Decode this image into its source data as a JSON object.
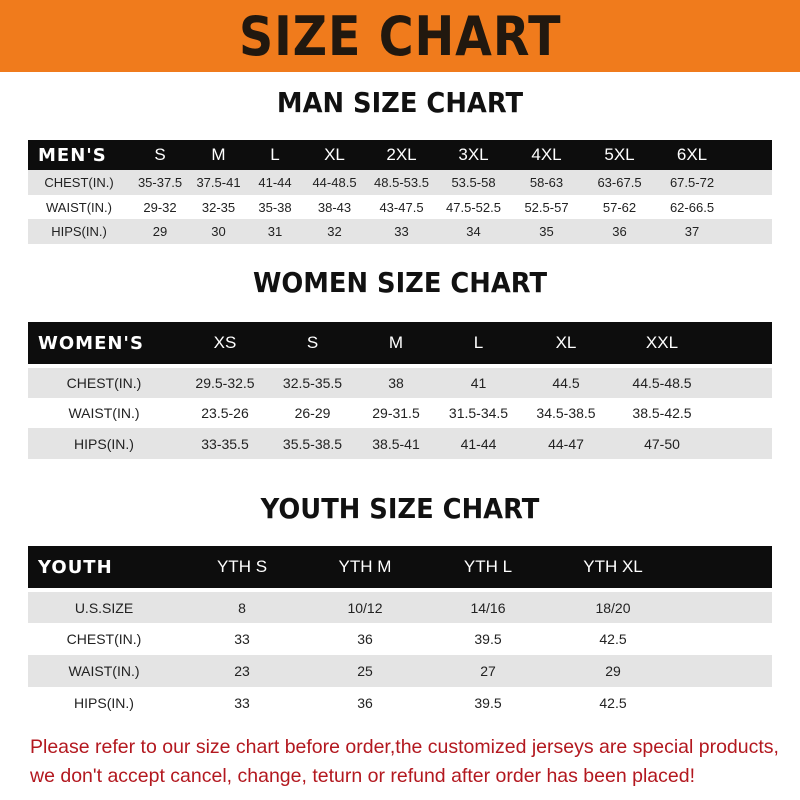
{
  "banner_title": "SIZE CHART",
  "colors": {
    "banner": "#f07b1c",
    "header_row": "#0d0d0d",
    "stripe": "#e4e4e4",
    "notice": "#b3181f"
  },
  "men": {
    "title": "MAN SIZE CHART",
    "header": [
      "MEN'S",
      "S",
      "M",
      "L",
      "XL",
      "2XL",
      "3XL",
      "4XL",
      "5XL",
      "6XL"
    ],
    "rows": [
      [
        "CHEST(IN.)",
        "35-37.5",
        "37.5-41",
        "41-44",
        "44-48.5",
        "48.5-53.5",
        "53.5-58",
        "58-63",
        "63-67.5",
        "67.5-72"
      ],
      [
        "WAIST(IN.)",
        "29-32",
        "32-35",
        "35-38",
        "38-43",
        "43-47.5",
        "47.5-52.5",
        "52.5-57",
        "57-62",
        "62-66.5"
      ],
      [
        "HIPS(IN.)",
        "29",
        "30",
        "31",
        "32",
        "33",
        "34",
        "35",
        "36",
        "37"
      ]
    ]
  },
  "women": {
    "title": "WOMEN SIZE CHART",
    "header": [
      "WOMEN'S",
      "XS",
      "S",
      "M",
      "L",
      "XL",
      "XXL"
    ],
    "rows": [
      [
        "CHEST(IN.)",
        "29.5-32.5",
        "32.5-35.5",
        "38",
        "41",
        "44.5",
        "44.5-48.5"
      ],
      [
        "WAIST(IN.)",
        "23.5-26",
        "26-29",
        "29-31.5",
        "31.5-34.5",
        "34.5-38.5",
        "38.5-42.5"
      ],
      [
        "HIPS(IN.)",
        "33-35.5",
        "35.5-38.5",
        "38.5-41",
        "41-44",
        "44-47",
        "47-50"
      ]
    ]
  },
  "youth": {
    "title": "YOUTH SIZE CHART",
    "header": [
      "YOUTH",
      "YTH S",
      "YTH M",
      "YTH L",
      "YTH XL"
    ],
    "rows": [
      [
        "U.S.SIZE",
        "8",
        "10/12",
        "14/16",
        "18/20"
      ],
      [
        "CHEST(IN.)",
        "33",
        "36",
        "39.5",
        "42.5"
      ],
      [
        "WAIST(IN.)",
        "23",
        "25",
        "27",
        "29"
      ],
      [
        "HIPS(IN.)",
        "33",
        "36",
        "39.5",
        "42.5"
      ]
    ]
  },
  "notice": {
    "line1": "Please refer to our size chart before order,the customized jerseys are special products,",
    "line2": "we don't accept cancel, change, teturn or refund after order has been placed!"
  }
}
